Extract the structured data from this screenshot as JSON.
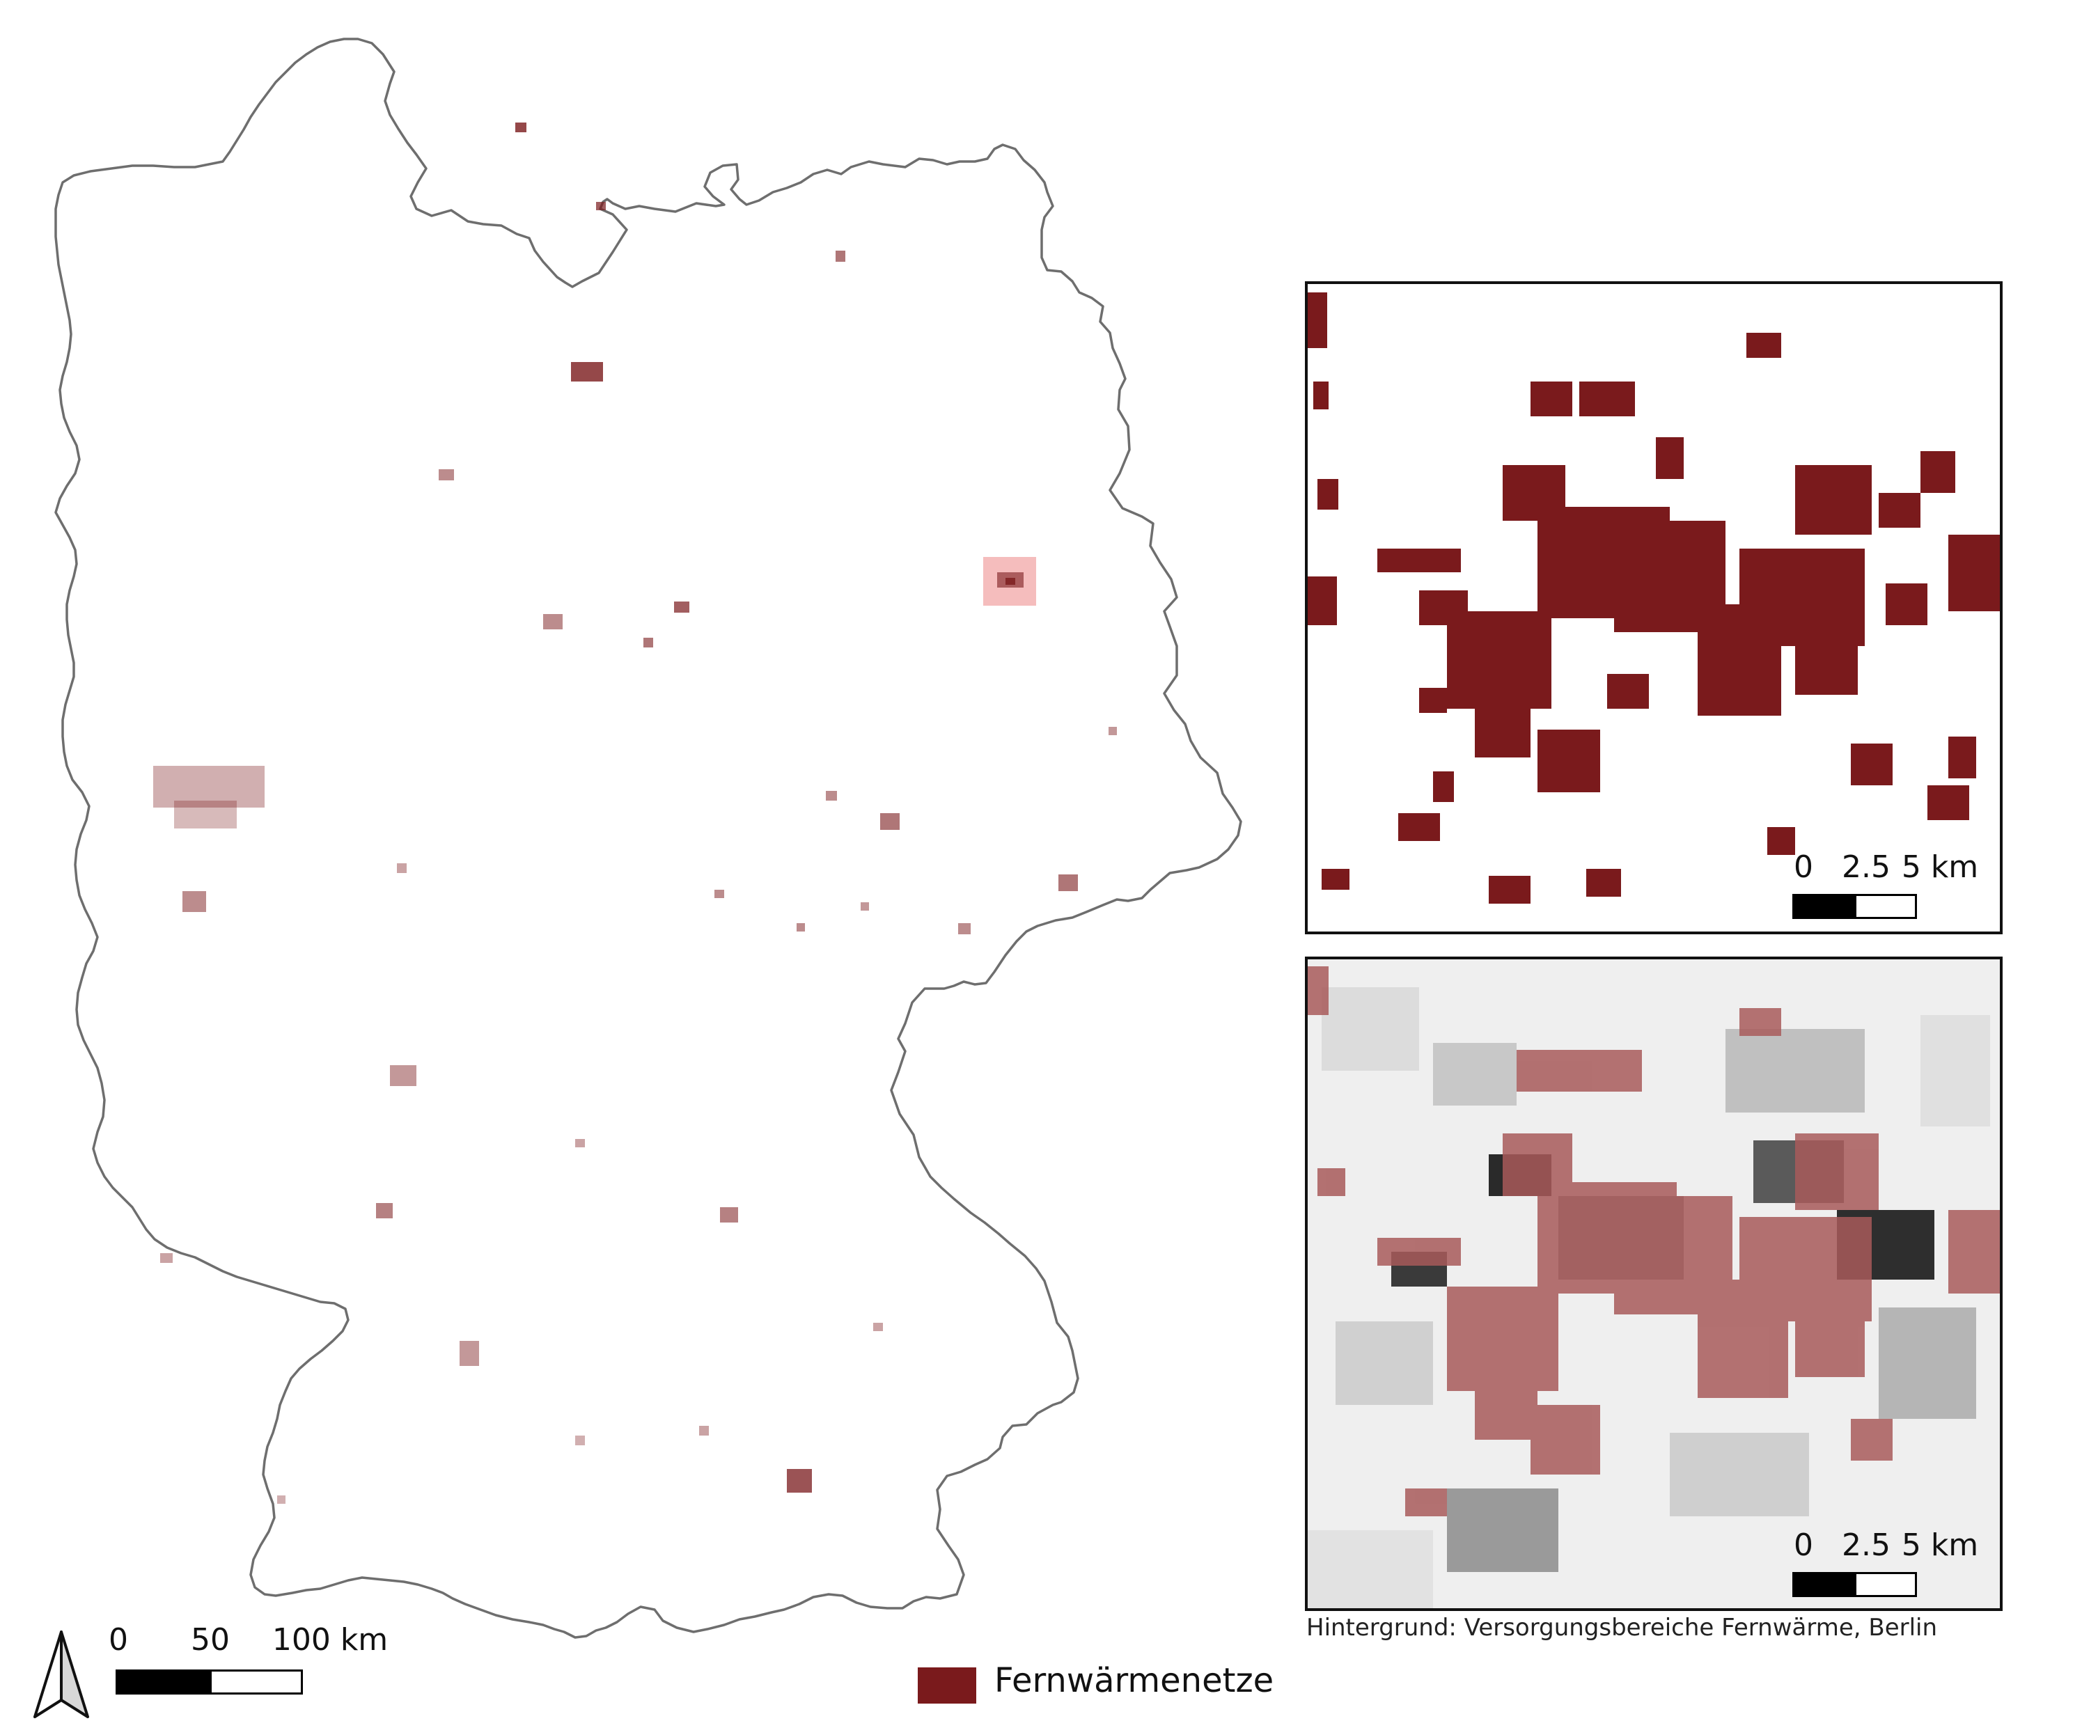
{
  "legend": {
    "label": "Fernwärmenetze",
    "color": "#7a1a1c"
  },
  "colors": {
    "network": "#7a1a1c",
    "network_transparent": "#a85a5a",
    "boundary": "#6e6e6e",
    "highlight_box": "#ef9a9a"
  },
  "main_map": {
    "scale_bar": {
      "labels": [
        "0",
        "50",
        "100 km"
      ]
    },
    "north_arrow_icon": "north-arrow-icon"
  },
  "inset_top": {
    "scale_bar": {
      "labels": [
        "0",
        "2.5",
        "5 km"
      ]
    }
  },
  "inset_bottom": {
    "scale_bar": {
      "labels": [
        "0",
        "2.5",
        "5 km"
      ]
    },
    "attribution": "Hintergrund: Versorgungsbereiche Fernwärme, Berlin"
  }
}
